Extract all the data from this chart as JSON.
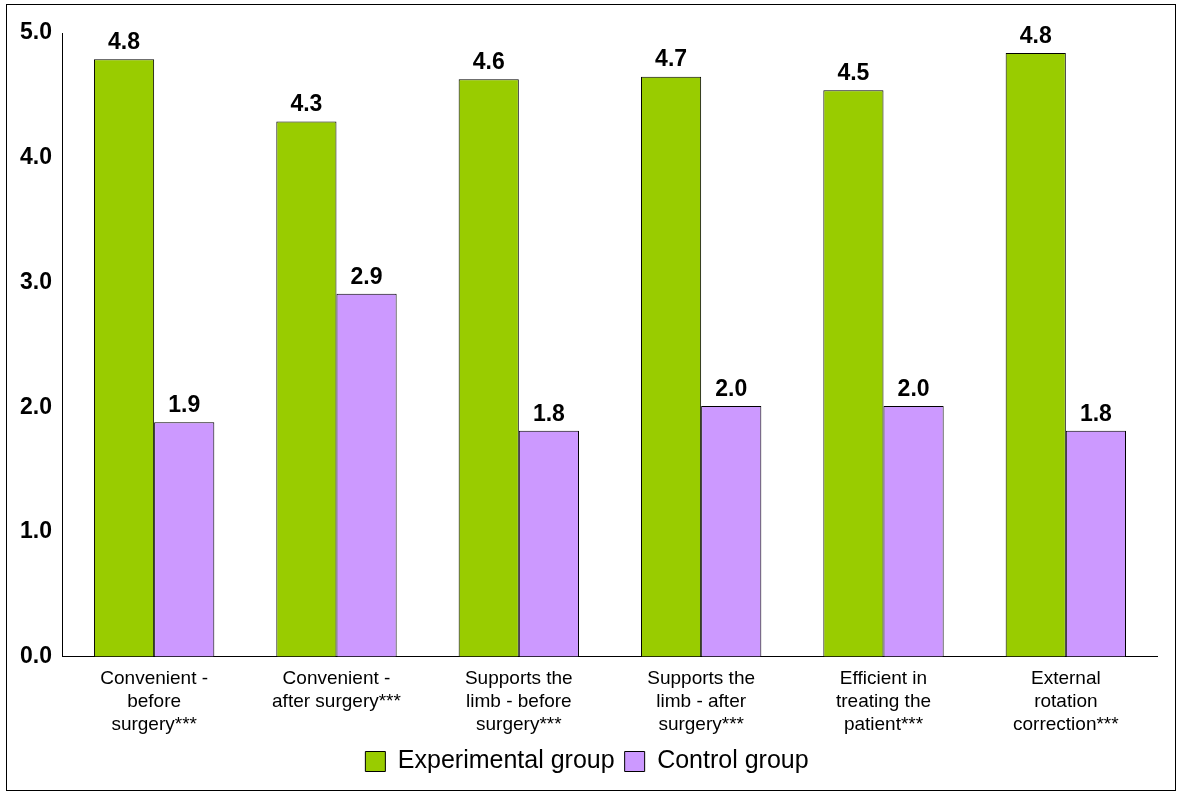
{
  "chart_data": {
    "type": "bar",
    "categories": [
      "Convenient - before surgery***",
      "Convenient - after surgery***",
      "Supports the limb - before surgery***",
      "Supports the limb - after surgery***",
      "Efficient in treating the patient***",
      "External rotation correction***"
    ],
    "series": [
      {
        "name": "Experimental group",
        "color": "#99cc00",
        "values": [
          4.79,
          4.29,
          4.63,
          4.65,
          4.54,
          4.84
        ],
        "value_labels": [
          "4.8",
          "4.3",
          "4.6",
          "4.7",
          "4.5",
          "4.8"
        ]
      },
      {
        "name": "Control group",
        "color": "#cc99ff",
        "values": [
          1.88,
          2.91,
          1.81,
          2.01,
          2.01,
          1.81
        ],
        "value_labels": [
          "1.9",
          "2.9",
          "1.8",
          "2.0",
          "2.0",
          "1.8"
        ]
      }
    ],
    "ylim": [
      0,
      5
    ],
    "yticks": [
      {
        "value": 0,
        "label": "0.0"
      },
      {
        "value": 1,
        "label": "1.0"
      },
      {
        "value": 2,
        "label": "2.0"
      },
      {
        "value": 3,
        "label": "3.0"
      },
      {
        "value": 4,
        "label": "4.0"
      },
      {
        "value": 5,
        "label": "5.0"
      }
    ],
    "grid": false,
    "legend": "bottom"
  }
}
